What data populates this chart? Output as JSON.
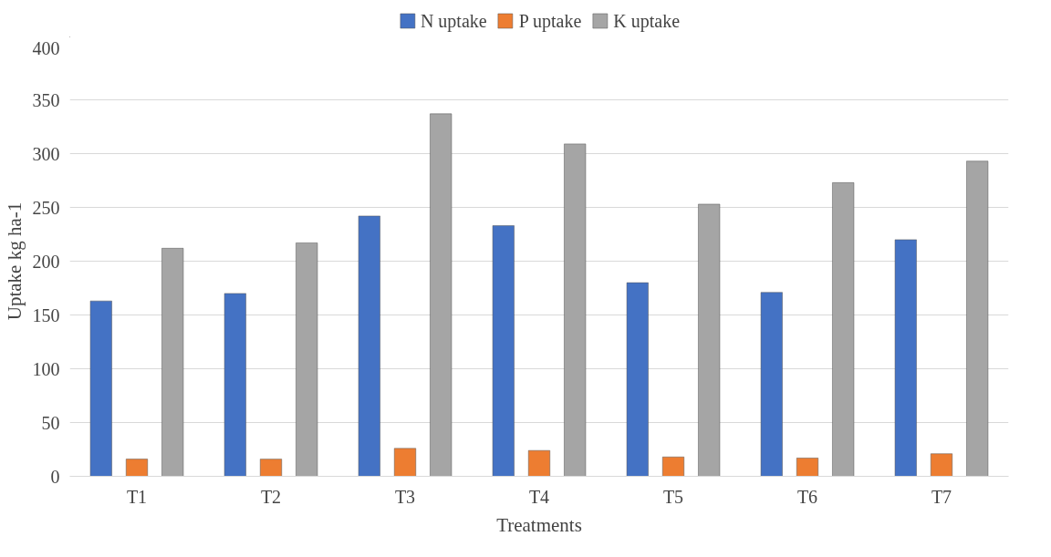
{
  "chart_data": {
    "type": "bar",
    "xlabel": "Treatments",
    "ylabel": "Uptake kg ha-1",
    "categories": [
      "T1",
      "T2",
      "T3",
      "T4",
      "T5",
      "T6",
      "T7"
    ],
    "series": [
      {
        "name": "N uptake",
        "color": "#4472c4",
        "values": [
          163,
          170,
          242,
          233,
          180,
          171,
          220
        ]
      },
      {
        "name": "P uptake",
        "color": "#ed7d31",
        "values": [
          16,
          16,
          26,
          24,
          18,
          17,
          21
        ]
      },
      {
        "name": "K uptake",
        "color": "#a5a5a5",
        "values": [
          212,
          217,
          337,
          309,
          253,
          273,
          293
        ]
      }
    ],
    "ylim": [
      0,
      400
    ],
    "yticks": [
      0,
      50,
      100,
      150,
      200,
      250,
      300,
      350,
      400
    ],
    "grid": "y",
    "legend": "top"
  }
}
